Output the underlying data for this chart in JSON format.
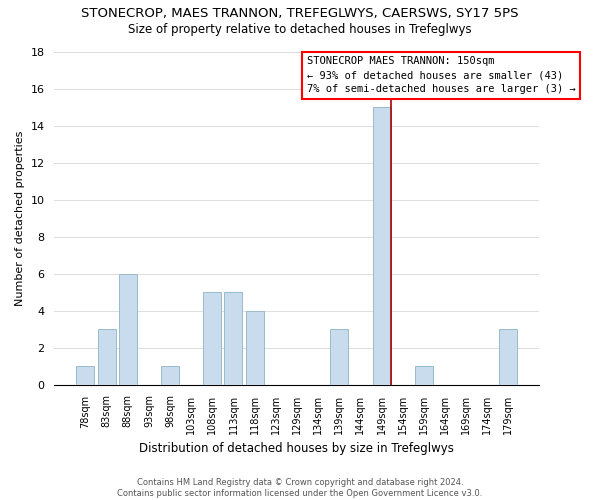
{
  "title": "STONECROP, MAES TRANNON, TREFEGLWYS, CAERSWS, SY17 5PS",
  "subtitle": "Size of property relative to detached houses in Trefeglwys",
  "xlabel": "Distribution of detached houses by size in Trefeglwys",
  "ylabel": "Number of detached properties",
  "footer_line1": "Contains HM Land Registry data © Crown copyright and database right 2024.",
  "footer_line2": "Contains public sector information licensed under the Open Government Licence v3.0.",
  "bar_labels": [
    "78sqm",
    "83sqm",
    "88sqm",
    "93sqm",
    "98sqm",
    "103sqm",
    "108sqm",
    "113sqm",
    "118sqm",
    "123sqm",
    "129sqm",
    "134sqm",
    "139sqm",
    "144sqm",
    "149sqm",
    "154sqm",
    "159sqm",
    "164sqm",
    "169sqm",
    "174sqm",
    "179sqm"
  ],
  "bar_values": [
    1,
    3,
    6,
    0,
    1,
    0,
    5,
    5,
    4,
    0,
    0,
    0,
    3,
    0,
    15,
    0,
    1,
    0,
    0,
    0,
    3
  ],
  "bar_color": "#c8dcee",
  "marker_line_color": "#aa0000",
  "marker_line_index": 14,
  "ylim": [
    0,
    18
  ],
  "yticks": [
    0,
    2,
    4,
    6,
    8,
    10,
    12,
    14,
    16,
    18
  ],
  "annotation_title": "STONECROP MAES TRANNON: 150sqm",
  "annotation_line1": "← 93% of detached houses are smaller (43)",
  "annotation_line2": "7% of semi-detached houses are larger (3) →",
  "background_color": "#ffffff",
  "grid_color": "#dddddd",
  "title_fontsize": 9.5,
  "subtitle_fontsize": 8.5,
  "xlabel_fontsize": 8.5,
  "ylabel_fontsize": 8,
  "tick_fontsize": 7,
  "annotation_fontsize": 7.5,
  "footer_fontsize": 6
}
